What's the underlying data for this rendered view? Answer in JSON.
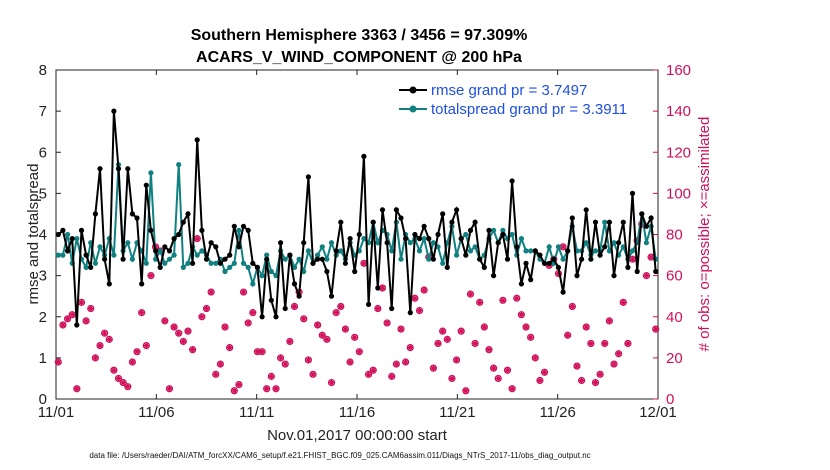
{
  "chart_data": {
    "type": "line",
    "title_line1": "Southern Hemisphere 3363 / 3456 = 97.309%",
    "title_line2": "ACARS_V_WIND_COMPONENT @ 200 hPa",
    "xlabel": "Nov.01,2017 00:00:00 start",
    "ylabel": "rmse and totalspread",
    "y2label": "# of obs: o=possible; ×=assimilated",
    "xlim": [
      0,
      30
    ],
    "ylim": [
      0,
      8
    ],
    "y2lim": [
      0,
      160
    ],
    "x_ticks": [
      0,
      5,
      10,
      15,
      20,
      25,
      30
    ],
    "x_tick_labels": [
      "11/01",
      "11/06",
      "11/11",
      "11/16",
      "11/21",
      "11/26",
      "12/01"
    ],
    "y_ticks": [
      "0",
      "1",
      "2",
      "3",
      "4",
      "5",
      "6",
      "7",
      "8"
    ],
    "y2_ticks": [
      "0",
      "20",
      "40",
      "60",
      "80",
      "100",
      "120",
      "140",
      "160"
    ],
    "legend_position": "top-right",
    "colors": {
      "rmse": "#000000",
      "spread": "#118080",
      "obs": "#d0105a"
    },
    "series": [
      {
        "name": "rmse grand pr = 3.7497",
        "values": [
          4.0,
          4.1,
          3.6,
          3.9,
          1.8,
          4.1,
          3.5,
          3.2,
          4.5,
          5.6,
          3.4,
          2.8,
          7.0,
          5.6,
          3.4,
          5.6,
          4.5,
          4.4,
          2.8,
          5.2,
          4.1,
          3.6,
          3.2,
          3.7,
          3.6,
          3.9,
          4.0,
          4.3,
          4.5,
          3.3,
          6.3,
          4.1,
          3.4,
          3.8,
          3.7,
          3.3,
          3.4,
          3.5,
          4.2,
          3.7,
          4.2,
          4.1,
          3.3,
          3.2,
          2.0,
          3.4,
          2.4,
          2.0,
          3.8,
          2.2,
          3.5,
          2.8,
          2.5,
          3.8,
          5.4,
          3.3,
          3.4,
          3.4,
          3.1,
          2.5,
          3.6,
          4.3,
          3.3,
          3.9,
          3.1,
          4.0,
          5.9,
          2.3,
          4.3,
          2.7,
          4.6,
          3.8,
          2.2,
          4.6,
          4.4,
          3.9,
          2.1,
          4.0,
          3.9,
          4.2,
          3.9,
          3.4,
          4.0,
          4.5,
          3.2,
          4.3,
          4.6,
          3.9,
          3.5,
          4.1,
          4.3,
          3.4,
          3.2,
          4.1,
          3.0,
          3.8,
          4.0,
          3.4,
          5.3,
          3.7,
          2.8,
          3.3,
          2.9,
          3.6,
          3.5,
          3.3,
          3.3,
          3.4,
          3.2,
          2.6,
          3.6,
          4.4,
          3.0,
          3.4,
          4.6,
          3.4,
          4.3,
          3.5,
          3.7,
          4.3,
          3.0,
          3.8,
          4.3,
          3.2,
          5.0,
          3.1,
          4.5,
          4.2,
          4.4,
          3.1
        ]
      },
      {
        "name": "totalspread grand pr = 3.3911",
        "values": [
          3.5,
          3.5,
          4.0,
          3.3,
          3.9,
          3.4,
          3.2,
          3.8,
          3.3,
          3.7,
          3.5,
          3.9,
          3.5,
          5.7,
          3.6,
          3.8,
          3.4,
          3.8,
          3.6,
          3.3,
          5.5,
          3.4,
          3.6,
          3.3,
          3.4,
          3.5,
          5.7,
          3.2,
          3.3,
          3.7,
          3.5,
          3.6,
          3.5,
          3.3,
          3.3,
          3.4,
          3.1,
          3.2,
          3.3,
          4.1,
          3.3,
          3.2,
          2.8,
          3.2,
          3.0,
          3.5,
          3.1,
          3.0,
          3.6,
          3.4,
          3.5,
          3.2,
          3.4,
          3.1,
          3.6,
          3.3,
          3.5,
          3.7,
          3.4,
          3.8,
          3.5,
          3.6,
          3.4,
          3.8,
          3.5,
          3.6,
          3.9,
          3.8,
          4.3,
          3.8,
          4.1,
          4.0,
          3.6,
          4.3,
          3.4,
          4.0,
          3.8,
          3.9,
          3.6,
          3.9,
          3.4,
          3.8,
          3.7,
          3.3,
          3.8,
          4.2,
          3.5,
          3.9,
          4.0,
          3.6,
          3.7,
          3.4,
          3.5,
          3.9,
          4.1,
          3.8,
          4.1,
          3.9,
          4.0,
          3.5,
          3.9,
          3.6,
          3.6,
          3.6,
          3.4,
          3.3,
          3.7,
          3.3,
          3.7,
          3.4,
          3.6,
          4.2,
          3.6,
          3.6,
          3.8,
          3.5,
          3.6,
          3.6,
          4.3,
          3.6,
          3.8,
          3.5,
          3.7,
          3.4,
          3.6,
          3.8,
          4.5,
          3.8,
          4.2,
          3.4
        ]
      }
    ],
    "obs_possible": [
      18,
      36,
      39,
      41,
      5,
      47,
      38,
      44,
      20,
      26,
      32,
      29,
      14,
      10,
      8,
      6,
      18,
      23,
      42,
      26,
      60,
      74,
      72,
      38,
      5,
      35,
      32,
      28,
      33,
      24,
      78,
      40,
      44,
      52,
      12,
      17,
      35,
      25,
      4,
      7,
      52,
      37,
      42,
      23,
      23,
      5,
      11,
      5,
      20,
      17,
      28,
      45,
      52,
      39,
      19,
      12,
      36,
      31,
      29,
      8,
      42,
      45,
      34,
      18,
      30,
      23,
      66,
      12,
      14,
      44,
      54,
      37,
      11,
      17,
      34,
      18,
      25,
      49,
      43,
      53,
      69,
      15,
      27,
      33,
      29,
      10,
      19,
      33,
      4,
      51,
      27,
      47,
      35,
      24,
      15,
      10,
      48,
      14,
      5,
      49,
      41,
      35,
      30,
      20,
      9,
      13,
      65,
      68,
      61,
      74,
      31,
      45,
      16,
      9,
      35,
      27,
      8,
      12,
      27,
      38,
      17,
      22,
      47,
      27,
      68,
      77,
      85,
      60,
      69,
      34
    ]
  }
}
